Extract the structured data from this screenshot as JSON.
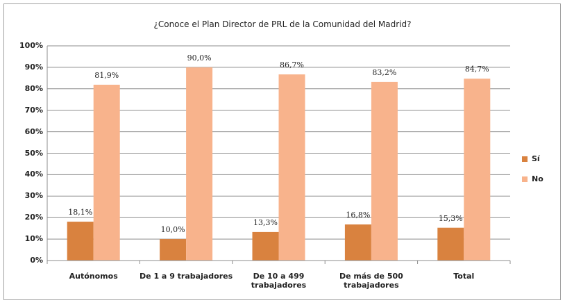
{
  "chart_data": {
    "type": "bar",
    "title": "¿Conoce el Plan Director de PRL de la Comunidad del Madrid?",
    "categories": [
      "Autónomos",
      "De 1 a 9 trabajadores",
      "De 10 a 499 trabajadores",
      "De más de 500 trabajadores",
      "Total"
    ],
    "series": [
      {
        "name": "Sí",
        "color": "#d9823f",
        "values": [
          18.1,
          10.0,
          13.3,
          16.8,
          15.3
        ],
        "value_labels": [
          "18,1%",
          "10,0%",
          "13,3%",
          "16,8%",
          "15,3%"
        ]
      },
      {
        "name": "No",
        "color": "#f8b38c",
        "values": [
          81.9,
          90.0,
          86.7,
          83.2,
          84.7
        ],
        "value_labels": [
          "81,9%",
          "90,0%",
          "86,7%",
          "83,2%",
          "84,7%"
        ]
      }
    ],
    "ylim": [
      0,
      100
    ],
    "yticks": [
      {
        "value": 0,
        "label": "0%"
      },
      {
        "value": 10,
        "label": "10%"
      },
      {
        "value": 20,
        "label": "20%"
      },
      {
        "value": 30,
        "label": "30%"
      },
      {
        "value": 40,
        "label": "40%"
      },
      {
        "value": 50,
        "label": "50%"
      },
      {
        "value": 60,
        "label": "60%"
      },
      {
        "value": 70,
        "label": "70%"
      },
      {
        "value": 80,
        "label": "80%"
      },
      {
        "value": 90,
        "label": "90%"
      },
      {
        "value": 100,
        "label": "100%"
      }
    ],
    "grid": true,
    "legend": "right"
  }
}
